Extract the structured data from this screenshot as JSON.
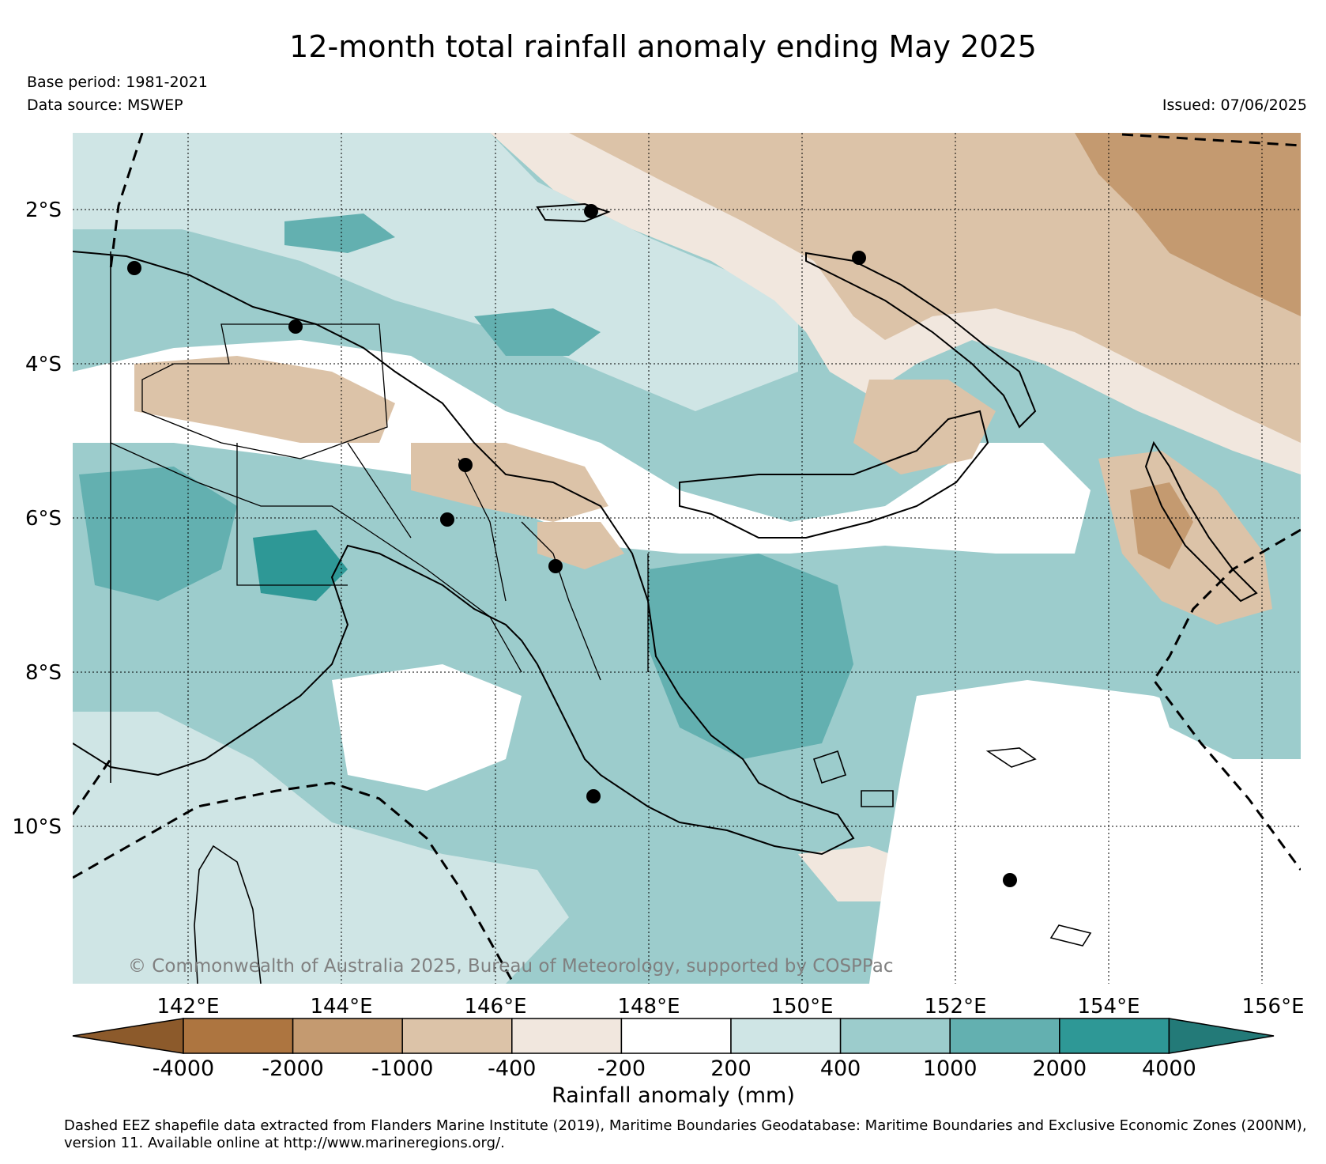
{
  "title": "12-month total rainfall anomaly ending May 2025",
  "meta": {
    "base_period": "Base period: 1981-2021",
    "data_source": "Data source: MSWEP",
    "issued": "Issued: 07/06/2025"
  },
  "map": {
    "lat_labels": [
      "2°S",
      "4°S",
      "6°S",
      "8°S",
      "10°S"
    ],
    "lon_labels": [
      "142°E",
      "144°E",
      "146°E",
      "148°E",
      "150°E",
      "152°E",
      "154°E",
      "156°E"
    ],
    "copyright": "© Commonwealth of Australia 2025, Bureau of Meteorology, supported by COSPPac"
  },
  "colorbar": {
    "label": "Rainfall anomaly (mm)",
    "ticks": [
      "-4000",
      "-2000",
      "-1000",
      "-400",
      "-200",
      "200",
      "400",
      "1000",
      "2000",
      "4000"
    ],
    "colors": [
      "#8c5a2b",
      "#ad7540",
      "#c49a70",
      "#dcc3a8",
      "#f1e7de",
      "#ffffff",
      "#cfe5e5",
      "#9ccccc",
      "#63b0b0",
      "#2e9896",
      "#237a78"
    ]
  },
  "footer": "Dashed EEZ shapefile data extracted from Flanders Marine Institute (2019), Maritime Boundaries Geodatabase: Maritime Boundaries and Exclusive Economic Zones (200NM), version 11. Available online at http://www.marineregions.org/."
}
